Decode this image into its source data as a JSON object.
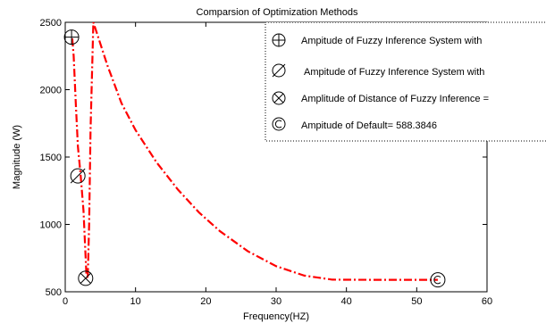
{
  "chart_data": {
    "type": "line",
    "title": "Comparsion of Optimization Methods",
    "xlabel": "Frequency(HZ)",
    "ylabel": "Magnitude (W)",
    "xlim": [
      0,
      60
    ],
    "ylim": [
      500,
      2500
    ],
    "xticks": [
      0,
      10,
      20,
      30,
      40,
      50,
      60
    ],
    "yticks": [
      500,
      1000,
      1500,
      2000,
      2500
    ],
    "grid": false,
    "legend_position": "top-right",
    "series": [
      {
        "color": "#ff0000",
        "style": "dash-dot",
        "x": [
          1.0,
          1.2,
          1.5,
          1.8,
          2.2,
          2.6,
          3.0,
          3.2,
          3.4,
          3.6,
          3.8,
          4.0,
          6,
          8,
          10,
          13,
          16,
          19,
          22,
          26,
          30,
          34,
          38,
          42,
          46,
          50,
          53
        ],
        "y": [
          2380,
          2250,
          1900,
          1580,
          1360,
          1100,
          640,
          600,
          1000,
          1700,
          2100,
          2500,
          2180,
          1900,
          1700,
          1460,
          1260,
          1090,
          950,
          800,
          690,
          620,
          590,
          589,
          588.4,
          588.4,
          588.4
        ]
      }
    ],
    "markers": [
      {
        "symbol": "circle-plus",
        "x": 0.9,
        "y": 2390
      },
      {
        "symbol": "circle-slash",
        "x": 1.8,
        "y": 1360
      },
      {
        "symbol": "circle-x",
        "x": 2.9,
        "y": 600
      },
      {
        "symbol": "circle-c",
        "x": 53,
        "y": 588.3846
      }
    ],
    "legend": [
      {
        "symbol": "circle-plus",
        "label": "Ampitude of Fuzzy Inference System with"
      },
      {
        "symbol": "circle-slash",
        "label": "Ampitude of Fuzzy Inference System with"
      },
      {
        "symbol": "circle-x",
        "label": "Amplitude of Distance of Fuzzy Inference  ="
      },
      {
        "symbol": "circle-c",
        "label": "Ampitude of Default= 588.3846"
      }
    ]
  }
}
